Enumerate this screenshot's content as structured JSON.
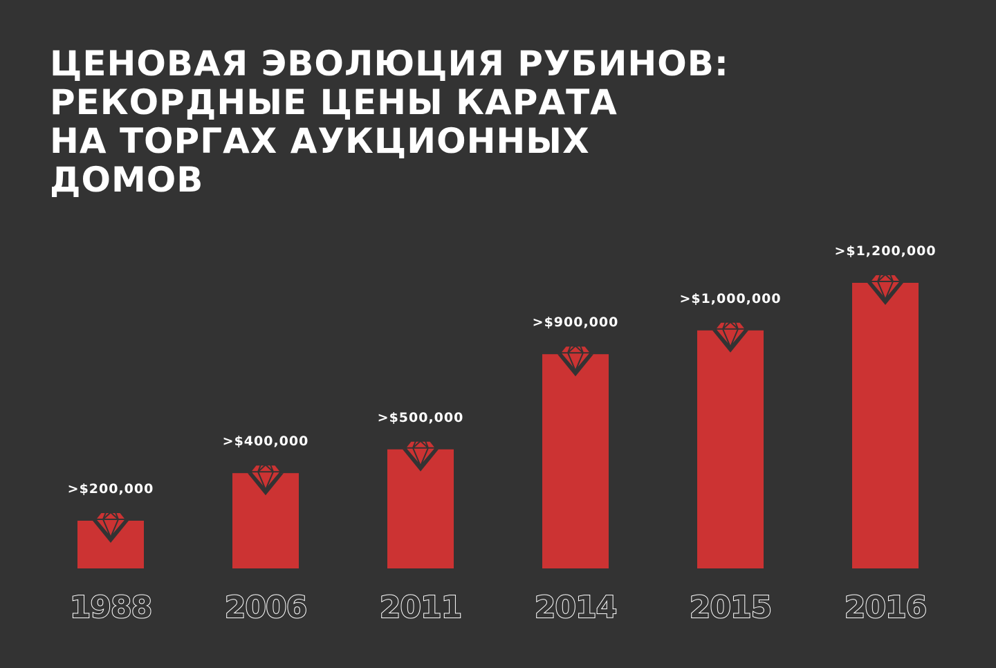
{
  "title": {
    "line1": "ЦЕНОВАЯ ЭВОЛЮЦИЯ РУБИНОВ:",
    "line2": "РЕКОРДНЫЕ ЦЕНЫ КАРАТА",
    "line3": "НА ТОРГАХ АУКЦИОННЫХ",
    "line4": "ДОМОВ"
  },
  "colors": {
    "background": "#333333",
    "bar": "#cc3333",
    "text": "#ffffff"
  },
  "icon": "ruby-gem-icon",
  "chart_data": {
    "type": "bar",
    "title": "ЦЕНОВАЯ ЭВОЛЮЦИЯ РУБИНОВ: РЕКОРДНЫЕ ЦЕНЫ КАРАТА НА ТОРГАХ АУКЦИОННЫХ ДОМОВ",
    "categories": [
      "1988",
      "2006",
      "2011",
      "2014",
      "2015",
      "2016"
    ],
    "values": [
      200000,
      400000,
      500000,
      900000,
      1000000,
      1200000
    ],
    "value_labels": [
      ">$200,000",
      ">$400,000",
      ">$500,000",
      ">$900,000",
      ">$1,000,000",
      ">$1,200,000"
    ],
    "xlabel": "",
    "ylabel": "",
    "ylim": [
      0,
      1200000
    ],
    "grid": false,
    "legend": "none"
  }
}
